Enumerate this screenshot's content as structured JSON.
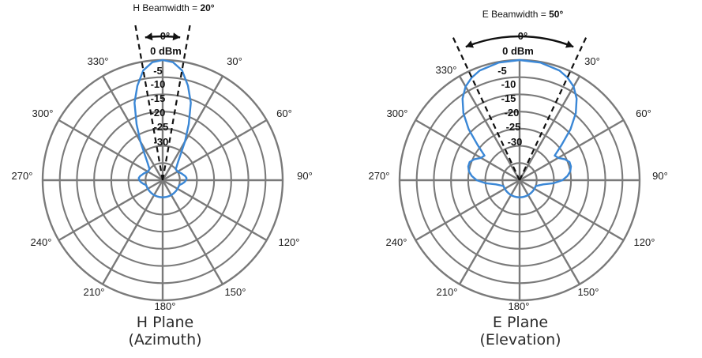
{
  "chart_data": [
    {
      "type": "polar",
      "title": "H Plane",
      "subtitle": "(Azimuth)",
      "beamwidth_label": "H Beamwidth = ",
      "beamwidth_value": "20°",
      "beamwidth_deg": 20,
      "zero_angle_label": "0°",
      "zero_ring_label": "0 dBm",
      "ring_labels": [
        "-5",
        "-10",
        "-15",
        "-20",
        "-25",
        "-30"
      ],
      "ring_values_dbm": [
        0,
        -5,
        -10,
        -15,
        -20,
        -25,
        -30
      ],
      "angle_labels": [
        "330°",
        "30°",
        "300°",
        "60°",
        "270°",
        "90°",
        "240°",
        "120°",
        "210°",
        "150°",
        "180°"
      ],
      "angle_values_deg": [
        330,
        30,
        300,
        60,
        270,
        90,
        240,
        120,
        210,
        150,
        180
      ],
      "series": [
        {
          "angles_deg": [
            0,
            5,
            10,
            15,
            20,
            25,
            30,
            40,
            50,
            60,
            70,
            80,
            85,
            90,
            95,
            100,
            105,
            110,
            115,
            120,
            130,
            140,
            150,
            160,
            170,
            180,
            190,
            200,
            210,
            220,
            230,
            240,
            245,
            250,
            255,
            260,
            265,
            270,
            275,
            280,
            290,
            300,
            310,
            320,
            330,
            335,
            340,
            345,
            350,
            355,
            360
          ],
          "gain_dbm": [
            0,
            -0.5,
            -2.5,
            -6.5,
            -11,
            -17,
            -22,
            -28,
            -30,
            -30,
            -29.2,
            -28.3,
            -28,
            -28.2,
            -28.6,
            -29.2,
            -29.8,
            -30,
            -30,
            -30,
            -30,
            -30,
            -30,
            -30,
            -30,
            -30,
            -30,
            -30,
            -30,
            -30,
            -30,
            -30,
            -30,
            -30,
            -29.8,
            -29.2,
            -28.6,
            -28.2,
            -28,
            -28.3,
            -29.2,
            -30,
            -30,
            -28,
            -22,
            -17,
            -11,
            -6.5,
            -2.5,
            -0.5,
            0
          ],
          "color": "#3a87d6"
        }
      ]
    },
    {
      "type": "polar",
      "title": "E Plane",
      "subtitle": "(Elevation)",
      "beamwidth_label": "E Beamwidth = ",
      "beamwidth_value": "50°",
      "beamwidth_deg": 50,
      "zero_angle_label": "0°",
      "zero_ring_label": "0 dBm",
      "ring_labels": [
        "-5",
        "-10",
        "-15",
        "-20",
        "-25",
        "-30"
      ],
      "ring_values_dbm": [
        0,
        -5,
        -10,
        -15,
        -20,
        -25,
        -30
      ],
      "angle_labels": [
        "330°",
        "30°",
        "300°",
        "60°",
        "270°",
        "90°",
        "240°",
        "120°",
        "210°",
        "150°",
        "180°"
      ],
      "angle_values_deg": [
        330,
        30,
        300,
        60,
        270,
        90,
        240,
        120,
        210,
        150,
        180
      ],
      "series": [
        {
          "angles_deg": [
            0,
            10,
            20,
            25,
            30,
            35,
            40,
            45,
            50,
            55,
            60,
            65,
            70,
            75,
            80,
            85,
            90,
            95,
            100,
            110,
            120,
            130,
            140,
            150,
            160,
            170,
            180,
            190,
            200,
            210,
            220,
            230,
            240,
            250,
            260,
            265,
            270,
            275,
            280,
            285,
            290,
            295,
            300,
            305,
            310,
            315,
            320,
            325,
            330,
            335,
            340,
            350,
            360
          ],
          "gain_dbm": [
            0,
            -0.2,
            -1,
            -2,
            -3.5,
            -6,
            -9.5,
            -14,
            -19,
            -22.5,
            -22,
            -20.5,
            -19.5,
            -19.5,
            -20,
            -21,
            -22.5,
            -25,
            -28,
            -30,
            -30,
            -30,
            -30,
            -30,
            -30,
            -30,
            -30,
            -30,
            -30,
            -30,
            -30,
            -30,
            -30,
            -30,
            -28,
            -25,
            -22.5,
            -21,
            -20,
            -19.5,
            -19.5,
            -20.5,
            -22,
            -22.5,
            -19,
            -14,
            -9.5,
            -6,
            -3.5,
            -2,
            -1,
            -0.2,
            0
          ],
          "color": "#3a87d6"
        }
      ]
    }
  ]
}
